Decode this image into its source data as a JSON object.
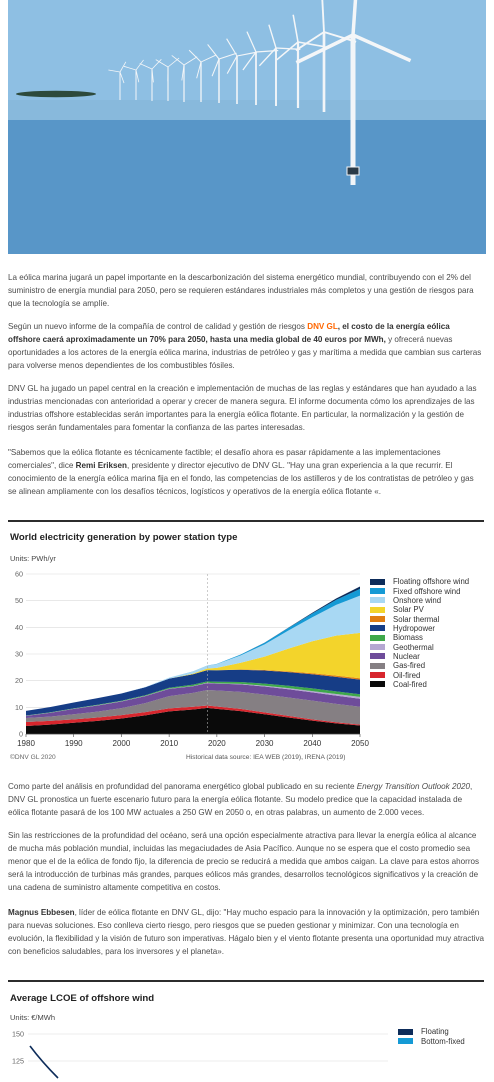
{
  "hero": {
    "alt": "Offshore wind farm"
  },
  "article": {
    "p1": {
      "text": "La eólica marina  jugará un papel importante en la descarbonización del sistema energético mundial, contribuyendo con el 2% del suministro de energía mundial para 2050, pero se requieren estándares industriales más completos y una gestión de riesgos para que la tecnología se amplíe."
    },
    "p2": {
      "a": "Según un nuevo informe de la compañía de control de calidad y gestión de riesgos ",
      "link": "DNV GL",
      "b": ", el costo de la energía eólica offshore caerá aproximadamente un 70% para 2050, hasta una media global de 40 euros por MWh,",
      "c": " y ofrecerá nuevas oportunidades a los actores de la energía eólica marina, industrias de petróleo y gas y marítima a medida que cambian sus carteras para volverse menos dependientes de los combustibles fósiles."
    },
    "p3": {
      "text": "DNV GL ha jugado un papel central en la creación e implementación de muchas de las reglas y estándares que han ayudado a las industrias mencionadas con anterioridad a operar y crecer de manera segura. El informe documenta cómo los aprendizajes de las industrias offshore establecidas serán importantes para la energía eólica flotante. En particular, la normalización y la gestión de riesgos serán fundamentales para fomentar la confianza de las partes interesadas."
    },
    "p4": {
      "a": "\"Sabemos que la eólica flotante es técnicamente factible; el desafío ahora es pasar rápidamente a las implementaciones comerciales\", dice ",
      "name": "Remi Eriksen",
      "b": ", presidente y director ejecutivo de DNV GL. \"Hay una gran experiencia a la que recurrir. El conocimiento de la energía eólica marina fija en el fondo, las competencias de los astilleros y de los contratistas de petróleo y gas se alinean ampliamente con los desafíos técnicos, logísticos y operativos de la energía eólica flotante «."
    },
    "p5": {
      "a": "Como parte del análisis en profundidad del panorama energético global publicado en su reciente ",
      "italic": "Energy Transition Outlook 2020",
      "b": ", DNV GL pronostica un fuerte escenario futuro para la energía eólica flotante. Su modelo predice que la capacidad instalada de eólica flotante pasará de los 100 MW actuales a 250 GW en 2050 o, en otras palabras, un aumento de 2.000 veces."
    },
    "p6": {
      "text": "Sin las restricciones de la profundidad del océano, será una opción especialmente atractiva para llevar la energía eólica al alcance de mucha más población mundial, incluidas las megaciudades de Asia Pacífico. Aunque no se espera que el costo promedio sea menor que el de la eólica de fondo fijo, la diferencia de precio se reducirá a medida que ambos caigan. La clave para estos ahorros será la introducción de turbinas más grandes, parques eólicos más grandes, desarrollos tecnológicos significativos y la creación de una cadena de suministro altamente competitiva en costos."
    },
    "p7": {
      "name": "Magnus Ebbesen",
      "text": ", líder de eólica flotante en DNV GL, dijo: \"Hay mucho espacio para la innovación y la optimización, pero también para nuevas soluciones. Eso conlleva cierto riesgo, pero riesgos que se pueden gestionar y minimizar. Con una tecnología en evolución, la flexibilidad y la visión de futuro son imperativas. Hágalo bien y el viento flotante presenta una oportunidad muy atractiva con beneficios saludables, para los inversores y el planeta»."
    }
  },
  "chart_data": [
    {
      "type": "area",
      "title": "World electricity generation by power station type",
      "units_label": "Units: PWh/yr",
      "xlabel": "",
      "ylabel": "",
      "xlim": [
        1980,
        2050
      ],
      "ylim": [
        0,
        60
      ],
      "x_ticks": [
        1980,
        1990,
        2000,
        2010,
        2020,
        2030,
        2040,
        2050
      ],
      "y_ticks": [
        0,
        10,
        20,
        30,
        40,
        50,
        60
      ],
      "historical_until": 2018,
      "grid": true,
      "legend_position": "right",
      "x": [
        1980,
        1985,
        1990,
        1995,
        2000,
        2005,
        2010,
        2015,
        2018,
        2020,
        2025,
        2030,
        2035,
        2040,
        2045,
        2050
      ],
      "series": [
        {
          "name": "Coal-fired",
          "color": "#0a0a0a",
          "values": [
            3.0,
            3.5,
            4.2,
            4.9,
            5.8,
            7.0,
            8.5,
            9.2,
            9.8,
            9.4,
            8.6,
            7.4,
            6.2,
            5.0,
            4.0,
            3.2
          ]
        },
        {
          "name": "Oil-fired",
          "color": "#d7262d",
          "values": [
            1.5,
            1.4,
            1.3,
            1.3,
            1.3,
            1.2,
            1.1,
            1.0,
            0.9,
            0.9,
            0.8,
            0.7,
            0.6,
            0.5,
            0.4,
            0.3
          ]
        },
        {
          "name": "Gas-fired",
          "color": "#857f83",
          "values": [
            1.5,
            1.6,
            1.9,
            2.2,
            2.6,
            3.4,
            4.6,
            5.2,
            5.8,
            6.0,
            6.4,
            6.7,
            6.9,
            7.0,
            6.9,
            6.7
          ]
        },
        {
          "name": "Nuclear",
          "color": "#6e4c9a",
          "values": [
            0.8,
            1.4,
            2.0,
            2.3,
            2.5,
            2.6,
            2.7,
            2.5,
            2.6,
            2.6,
            2.8,
            3.0,
            3.1,
            3.1,
            3.1,
            3.0
          ]
        },
        {
          "name": "Geothermal",
          "color": "#b5a7d2",
          "values": [
            0.05,
            0.05,
            0.06,
            0.07,
            0.08,
            0.09,
            0.1,
            0.1,
            0.1,
            0.1,
            0.2,
            0.3,
            0.4,
            0.5,
            0.6,
            0.7
          ]
        },
        {
          "name": "Biomass",
          "color": "#3ea84a",
          "values": [
            0.1,
            0.15,
            0.15,
            0.2,
            0.2,
            0.25,
            0.35,
            0.5,
            0.55,
            0.6,
            0.7,
            0.8,
            0.9,
            1.0,
            1.0,
            1.0
          ]
        },
        {
          "name": "Hydropower",
          "color": "#163d86",
          "values": [
            1.7,
            2.0,
            2.2,
            2.5,
            2.7,
            3.0,
            3.4,
            3.9,
            4.2,
            4.3,
            4.6,
            4.9,
            5.1,
            5.3,
            5.4,
            5.5
          ]
        },
        {
          "name": "Solar thermal",
          "color": "#e07d12",
          "values": [
            0,
            0,
            0,
            0,
            0,
            0,
            0,
            0,
            0,
            0,
            0.1,
            0.2,
            0.3,
            0.4,
            0.5,
            0.5
          ]
        },
        {
          "name": "Solar PV",
          "color": "#f3d42b",
          "values": [
            0,
            0,
            0,
            0,
            0,
            0,
            0.03,
            0.25,
            0.6,
            0.9,
            2.5,
            5.0,
            8.5,
            12.0,
            15.0,
            17.0
          ]
        },
        {
          "name": "Onshore wind",
          "color": "#a8d8f3",
          "values": [
            0,
            0,
            0,
            0,
            0.03,
            0.1,
            0.35,
            0.8,
            1.1,
            1.4,
            2.8,
            4.6,
            6.8,
            9.0,
            11.5,
            14.0
          ]
        },
        {
          "name": "Fixed offshore wind",
          "color": "#159ad5",
          "values": [
            0,
            0,
            0,
            0,
            0,
            0,
            0,
            0.02,
            0.05,
            0.1,
            0.3,
            0.6,
            1.0,
            1.4,
            1.9,
            2.5
          ]
        },
        {
          "name": "Floating offshore wind",
          "color": "#0d2c5a",
          "values": [
            0,
            0,
            0,
            0,
            0,
            0,
            0,
            0,
            0,
            0,
            0.01,
            0.05,
            0.1,
            0.25,
            0.5,
            0.9
          ]
        }
      ],
      "copyright": "©DNV GL 2020",
      "source": "Historical data source: IEA WEB (2019), IRENA (2019)"
    },
    {
      "type": "line",
      "title": "Average LCOE of offshore wind",
      "units_label": "Units: €/MWh",
      "xlabel": "",
      "ylabel": "",
      "y_ticks_visible": [
        150,
        125
      ],
      "legend_position": "right",
      "series": [
        {
          "name": "Floating",
          "color": "#0d2c5a"
        },
        {
          "name": "Bottom-fixed",
          "color": "#159ad5"
        }
      ]
    }
  ]
}
